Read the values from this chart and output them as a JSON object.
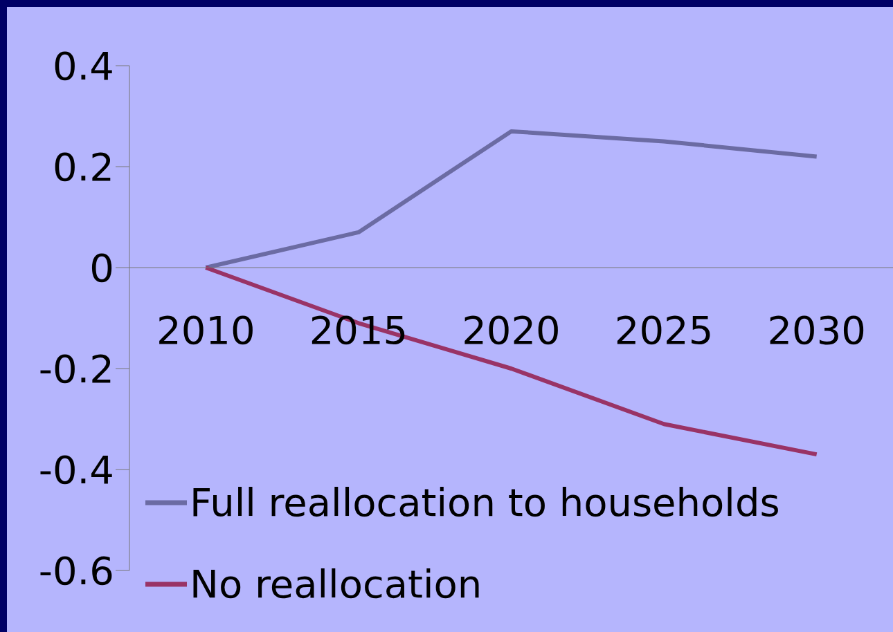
{
  "chart_data": {
    "type": "line",
    "categories": [
      "2010",
      "2015",
      "2020",
      "2025",
      "2030"
    ],
    "series": [
      {
        "name": "Full reallocation to households",
        "color": "#6b6ba3",
        "values": [
          0,
          0.07,
          0.27,
          0.25,
          0.22
        ]
      },
      {
        "name": "No reallocation",
        "color": "#993366",
        "values": [
          0,
          -0.11,
          -0.2,
          -0.31,
          -0.37
        ]
      }
    ],
    "ylim": [
      -0.6,
      0.4
    ],
    "yticks": [
      -0.6,
      -0.4,
      -0.2,
      0,
      0.2,
      0.4
    ],
    "grid": false,
    "legend": "bottom left",
    "marker": "none",
    "line_style": "solid"
  }
}
